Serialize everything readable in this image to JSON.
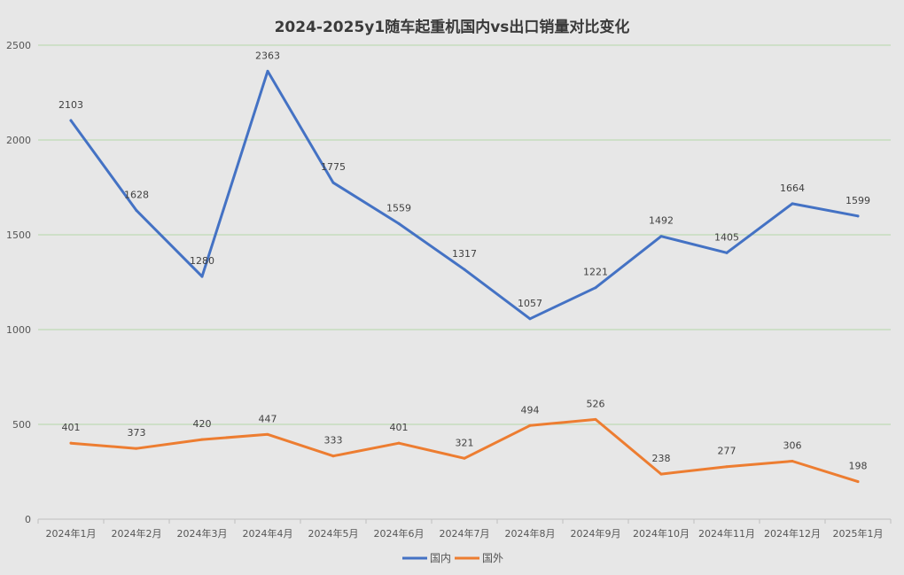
{
  "chart_data": {
    "type": "line",
    "title": "2024-2025y1随车起重机国内vs出口销量对比变化",
    "xlabel": "",
    "ylabel": "",
    "categories": [
      "2024年1月",
      "2024年2月",
      "2024年3月",
      "2024年4月",
      "2024年5月",
      "2024年6月",
      "2024年7月",
      "2024年8月",
      "2024年9月",
      "2024年10月",
      "2024年11月",
      "2024年12月",
      "2025年1月"
    ],
    "yticks": [
      "0",
      "500",
      "1000",
      "1500",
      "2000",
      "2500"
    ],
    "ylim": [
      0,
      2500
    ],
    "grid": true,
    "legend_position": "bottom",
    "series": [
      {
        "name": "国内",
        "color": "#4472c4",
        "values": [
          2103,
          1628,
          1280,
          2363,
          1775,
          1559,
          1317,
          1057,
          1221,
          1492,
          1405,
          1664,
          1599
        ],
        "labels": [
          "2103",
          "1628",
          "1280",
          "2363",
          "1775",
          "1559",
          "1317",
          "1057",
          "1221",
          "1492",
          "1405",
          "1664",
          "1599"
        ]
      },
      {
        "name": "国外",
        "color": "#ed7d31",
        "values": [
          401,
          373,
          420,
          447,
          333,
          401,
          321,
          494,
          526,
          238,
          277,
          306,
          198
        ],
        "labels": [
          "401",
          "373",
          "420",
          "447",
          "333",
          "401",
          "321",
          "494",
          "526",
          "238",
          "277",
          "306",
          "198"
        ]
      }
    ]
  }
}
